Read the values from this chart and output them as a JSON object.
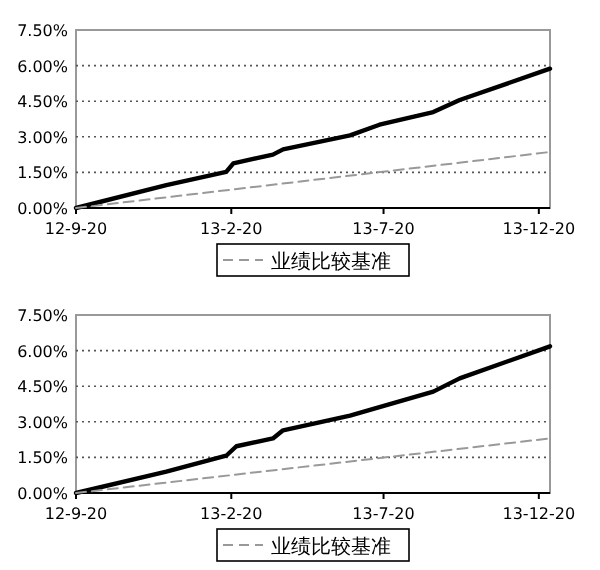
{
  "chart_data": [
    {
      "type": "line",
      "x": [
        "2012-09-20",
        "2013-12-31"
      ],
      "xlim": [
        "2012-09-20",
        "2013-12-31"
      ],
      "xticks": [
        {
          "value": "2012-09-20",
          "label": "12-9-20"
        },
        {
          "value": "2013-02-20",
          "label": "13-2-20"
        },
        {
          "value": "2013-07-20",
          "label": "13-7-20"
        },
        {
          "value": "2013-12-20",
          "label": "13-12-20"
        }
      ],
      "ylim": [
        0,
        7.5
      ],
      "yticks": [
        {
          "value": 0,
          "label": "0.00%"
        },
        {
          "value": 1.5,
          "label": "1.50%"
        },
        {
          "value": 3,
          "label": "3.00%"
        },
        {
          "value": 4.5,
          "label": "4.50%"
        },
        {
          "value": 6,
          "label": "6.00%"
        },
        {
          "value": 7.5,
          "label": "7.50%"
        }
      ],
      "grid": "y",
      "legend": "bottom",
      "series": [
        {
          "color": "#000000",
          "line_style": "solid",
          "x": [
            "2012-09-20",
            "2012-12-18",
            "2013-02-15",
            "2013-02-22",
            "2013-04-02",
            "2013-04-12",
            "2013-06-17",
            "2013-07-16",
            "2013-09-07",
            "2013-10-03",
            "2013-12-31"
          ],
          "values": [
            0,
            0.96,
            1.52,
            1.88,
            2.25,
            2.47,
            3.06,
            3.51,
            4.04,
            4.55,
            5.87
          ]
        },
        {
          "name": "业绩比较基准",
          "color": "#999999",
          "line_style": "dashed",
          "values": [
            0,
            2.36
          ]
        }
      ]
    },
    {
      "type": "line",
      "x": [
        "2012-09-20",
        "2013-12-31"
      ],
      "xlim": [
        "2012-09-20",
        "2013-12-31"
      ],
      "xticks": [
        {
          "value": "2012-09-20",
          "label": "12-9-20"
        },
        {
          "value": "2013-02-20",
          "label": "13-2-20"
        },
        {
          "value": "2013-07-20",
          "label": "13-7-20"
        },
        {
          "value": "2013-12-20",
          "label": "13-12-20"
        }
      ],
      "ylim": [
        0,
        7.5
      ],
      "yticks": [
        {
          "value": 0,
          "label": "0.00%"
        },
        {
          "value": 1.5,
          "label": "1.50%"
        },
        {
          "value": 3,
          "label": "3.00%"
        },
        {
          "value": 4.5,
          "label": "4.50%"
        },
        {
          "value": 6,
          "label": "6.00%"
        },
        {
          "value": 7.5,
          "label": "7.50%"
        }
      ],
      "grid": "y",
      "legend": "bottom",
      "series": [
        {
          "color": "#000000",
          "line_style": "solid",
          "x": [
            "2012-09-20",
            "2012-12-18",
            "2013-02-15",
            "2013-02-25",
            "2013-04-02",
            "2013-04-12",
            "2013-06-17",
            "2013-07-16",
            "2013-09-07",
            "2013-10-03",
            "2013-12-31"
          ],
          "values": [
            0,
            0.9,
            1.57,
            1.97,
            2.3,
            2.64,
            3.26,
            3.62,
            4.27,
            4.83,
            6.18
          ]
        },
        {
          "name": "业绩比较基准",
          "color": "#999999",
          "line_style": "dashed",
          "values": [
            0,
            2.3
          ]
        }
      ]
    }
  ]
}
